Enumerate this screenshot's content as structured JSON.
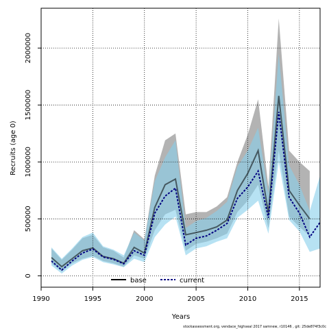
{
  "chart_data": {
    "type": "line",
    "title": "",
    "xlabel": "Years",
    "ylabel": "Recruits (age 0)",
    "xlim": [
      1990,
      2017
    ],
    "ylim": [
      -100000,
      2350000
    ],
    "x_ticks": [
      1990,
      1995,
      2000,
      2005,
      2010,
      2015
    ],
    "x_tick_labels": [
      "1990",
      "1995",
      "2000",
      "2005",
      "2010",
      "2015"
    ],
    "y_ticks": [
      0,
      500000,
      1000000,
      1500000,
      2000000
    ],
    "y_tick_labels": [
      "0",
      "500000",
      "1000000",
      "1500000",
      "2000000"
    ],
    "grid": true,
    "legend_position": "bottom-center",
    "legend": [
      "base",
      "current"
    ],
    "footer": "stockassessment.org, vendace_highseal 2017 samnew, r10146 , git: 25de874f3c0c",
    "colors": {
      "base_line": "#000000",
      "base_band": "#9a9a9a",
      "current_line": "#000080",
      "current_band": "#87ceeb",
      "overlap": "#6a9fb5"
    },
    "series": [
      {
        "name": "base",
        "style": "solid",
        "x": [
          1991,
          1992,
          1993,
          1994,
          1995,
          1996,
          1997,
          1998,
          1999,
          2000,
          2001,
          2002,
          2003,
          2004,
          2005,
          2006,
          2007,
          2008,
          2009,
          2010,
          2011,
          2012,
          2013,
          2014,
          2015,
          2016
        ],
        "values": [
          160000,
          80000,
          150000,
          220000,
          245000,
          170000,
          150000,
          110000,
          250000,
          200000,
          600000,
          800000,
          850000,
          360000,
          380000,
          400000,
          430000,
          490000,
          750000,
          900000,
          1100000,
          550000,
          1580000,
          750000,
          620000,
          500000
        ],
        "lower": [
          110000,
          40000,
          110000,
          150000,
          175000,
          130000,
          110000,
          80000,
          180000,
          150000,
          400000,
          540000,
          580000,
          220000,
          280000,
          300000,
          330000,
          370000,
          560000,
          660000,
          800000,
          420000,
          1100000,
          520000,
          430000,
          350000
        ],
        "upper": [
          240000,
          140000,
          230000,
          330000,
          360000,
          250000,
          220000,
          160000,
          400000,
          320000,
          880000,
          1190000,
          1250000,
          540000,
          560000,
          560000,
          610000,
          690000,
          1000000,
          1240000,
          1550000,
          780000,
          2260000,
          1100000,
          1000000,
          920000
        ]
      },
      {
        "name": "current",
        "style": "dashed",
        "x": [
          1991,
          1992,
          1993,
          1994,
          1995,
          1996,
          1997,
          1998,
          1999,
          2000,
          2001,
          2002,
          2003,
          2004,
          2005,
          2006,
          2007,
          2008,
          2009,
          2010,
          2011,
          2012,
          2013,
          2014,
          2015,
          2016,
          2017
        ],
        "values": [
          130000,
          50000,
          130000,
          200000,
          235000,
          165000,
          145000,
          105000,
          220000,
          180000,
          550000,
          700000,
          770000,
          270000,
          330000,
          350000,
          400000,
          460000,
          680000,
          780000,
          920000,
          510000,
          1440000,
          690000,
          550000,
          340000,
          470000
        ],
        "lower": [
          90000,
          20000,
          90000,
          140000,
          165000,
          120000,
          100000,
          75000,
          150000,
          120000,
          340000,
          450000,
          520000,
          180000,
          240000,
          260000,
          300000,
          330000,
          510000,
          580000,
          660000,
          370000,
          1000000,
          490000,
          390000,
          210000,
          240000
        ],
        "upper": [
          250000,
          150000,
          240000,
          340000,
          380000,
          260000,
          230000,
          180000,
          380000,
          310000,
          830000,
          1040000,
          1190000,
          420000,
          480000,
          510000,
          570000,
          650000,
          960000,
          1100000,
          1300000,
          720000,
          1950000,
          970000,
          800000,
          570000,
          880000
        ]
      }
    ]
  }
}
